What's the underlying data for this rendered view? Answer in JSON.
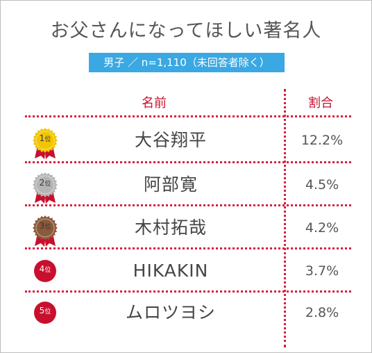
{
  "title": "お父さんになってほしい著名人",
  "subtitle": "男子 ／ n=1,110（未回答者除く）",
  "headers": {
    "name": "名前",
    "ratio": "割合"
  },
  "colors": {
    "accent": "#c8102e",
    "label_bg": "#3aa8e3",
    "gold": "#f2c500",
    "silver": "#b5b5b5",
    "bronze": "#8b5a3c",
    "red": "#c8102e"
  },
  "rows": [
    {
      "rank": "1",
      "rank_suffix": "位",
      "medal": "gold",
      "name": "大谷翔平",
      "ratio": "12.2%"
    },
    {
      "rank": "2",
      "rank_suffix": "位",
      "medal": "silver",
      "name": "阿部寛",
      "ratio": "4.5%"
    },
    {
      "rank": "3",
      "rank_suffix": "位",
      "medal": "bronze",
      "name": "木村拓哉",
      "ratio": "4.2%"
    },
    {
      "rank": "4",
      "rank_suffix": "位",
      "medal": "red",
      "name": "HIKAKIN",
      "ratio": "3.7%"
    },
    {
      "rank": "5",
      "rank_suffix": "位",
      "medal": "red",
      "name": "ムロツヨシ",
      "ratio": "2.8%"
    }
  ]
}
